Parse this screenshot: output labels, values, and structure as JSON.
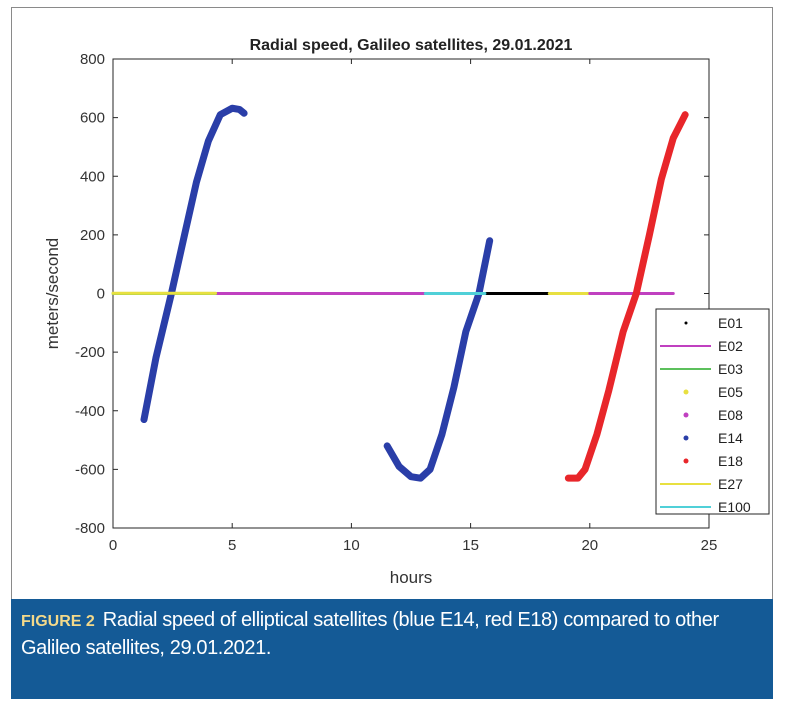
{
  "chart_data": {
    "type": "line",
    "title": "Radial speed, Galileo satellites, 29.01.2021",
    "xlabel": "hours",
    "ylabel": "meters/second",
    "xlim": [
      0,
      25
    ],
    "ylim": [
      -800,
      800
    ],
    "xticks": [
      0,
      5,
      10,
      15,
      20,
      25
    ],
    "yticks": [
      -800,
      -600,
      -400,
      -200,
      0,
      200,
      400,
      600,
      800
    ],
    "grid": false,
    "legend_position": "right",
    "series": [
      {
        "name": "E01",
        "color": "#000000",
        "marker": "dot",
        "segments": [
          [
            [
              15.6,
              0
            ],
            [
              18.3,
              0
            ]
          ]
        ]
      },
      {
        "name": "E02",
        "color": "#c040c0",
        "marker": "line",
        "segments": [
          [
            [
              4.3,
              0
            ],
            [
              13.1,
              0
            ]
          ]
        ]
      },
      {
        "name": "E03",
        "color": "#5cc05c",
        "marker": "line",
        "segments": [
          [
            [
              0,
              0
            ],
            [
              4.3,
              0
            ]
          ]
        ]
      },
      {
        "name": "E05",
        "color": "#e8e040",
        "marker": "dot",
        "segments": [
          [
            [
              18.3,
              0
            ],
            [
              20.0,
              0
            ]
          ]
        ]
      },
      {
        "name": "E08",
        "color": "#c040c0",
        "marker": "dot",
        "segments": [
          [
            [
              20.0,
              0
            ],
            [
              23.5,
              0
            ]
          ]
        ]
      },
      {
        "name": "E14",
        "color": "#2a3ea8",
        "marker": "dot",
        "segments": [
          [
            [
              1.3,
              -430
            ],
            [
              1.8,
              -220
            ],
            [
              2.45,
              0
            ],
            [
              3.0,
              200
            ],
            [
              3.5,
              380
            ],
            [
              4.0,
              520
            ],
            [
              4.5,
              610
            ],
            [
              5.0,
              632
            ],
            [
              5.3,
              628
            ],
            [
              5.5,
              615
            ]
          ],
          [
            [
              11.5,
              -520
            ],
            [
              12.0,
              -590
            ],
            [
              12.5,
              -625
            ],
            [
              12.9,
              -630
            ],
            [
              13.3,
              -600
            ],
            [
              13.8,
              -480
            ],
            [
              14.3,
              -320
            ],
            [
              14.8,
              -130
            ],
            [
              15.35,
              0
            ],
            [
              15.8,
              180
            ]
          ]
        ]
      },
      {
        "name": "E18",
        "color": "#e8262a",
        "marker": "dot",
        "segments": [
          [
            [
              19.1,
              -630
            ],
            [
              19.5,
              -630
            ],
            [
              19.8,
              -600
            ],
            [
              20.3,
              -480
            ],
            [
              20.8,
              -330
            ],
            [
              21.4,
              -130
            ],
            [
              21.95,
              0
            ],
            [
              22.5,
              200
            ],
            [
              23.0,
              390
            ],
            [
              23.5,
              530
            ],
            [
              24.0,
              610
            ]
          ]
        ]
      },
      {
        "name": "E27",
        "color": "#e8e040",
        "marker": "line",
        "segments": [
          [
            [
              0,
              1
            ],
            [
              4.3,
              1
            ]
          ]
        ]
      },
      {
        "name": "E100",
        "color": "#50d0d8",
        "marker": "line",
        "segments": [
          [
            [
              13.1,
              0
            ],
            [
              15.6,
              0
            ]
          ]
        ]
      }
    ]
  },
  "caption": {
    "label": "FIGURE 2",
    "text": "Radial speed of elliptical satellites (blue E14, red E18) compared to other Galileo satellites, 29.01.2021."
  }
}
